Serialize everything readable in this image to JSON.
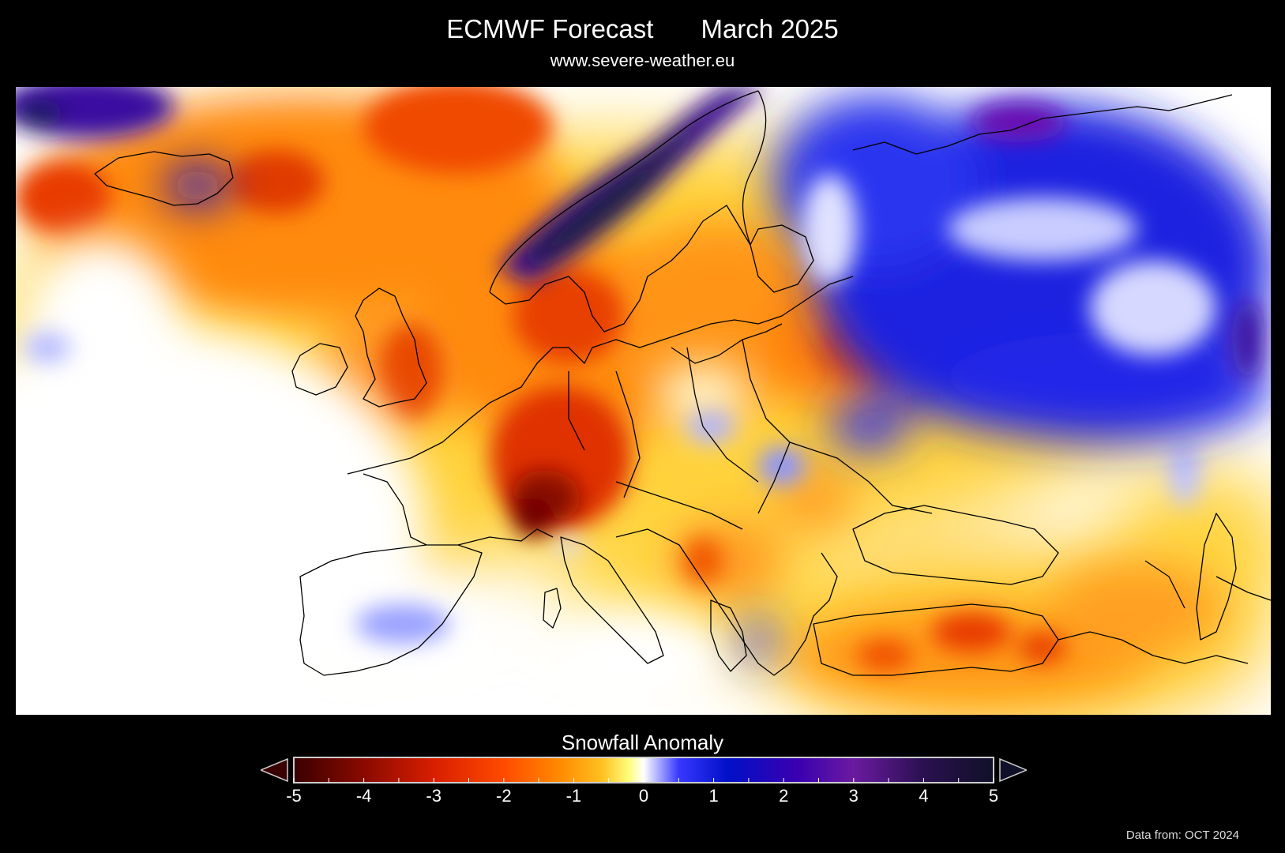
{
  "header": {
    "title_left": "ECMWF Forecast",
    "title_right": "March 2025",
    "website": "www.severe-weather.eu"
  },
  "legend": {
    "title": "Snowfall Anomaly",
    "ticks": [
      "-5",
      "-4",
      "-3",
      "-2",
      "-1",
      "0",
      "1",
      "2",
      "3",
      "4",
      "5"
    ],
    "range": [
      -5,
      5
    ],
    "colors": [
      "#3a0000",
      "#8a0a00",
      "#d81e00",
      "#ff4a00",
      "#ff8a00",
      "#ffc020",
      "#ffff80",
      "#ffffff",
      "#3838ff",
      "#0010c8",
      "#3a00b0",
      "#6a1aa0",
      "#2a1050",
      "#101028"
    ]
  },
  "footer": {
    "source": "Data from: OCT 2024"
  },
  "map": {
    "region": "Europe",
    "variable": "Snowfall Anomaly",
    "palette": {
      "strong_negative": "#7a0000",
      "negative": "#e03000",
      "mild_negative": "#ff9a10",
      "slight_negative": "#ffd640",
      "neutral": "#ffffff",
      "positive": "#2a38ff",
      "strong_positive": "#2a1466",
      "coast": "#000000"
    }
  }
}
